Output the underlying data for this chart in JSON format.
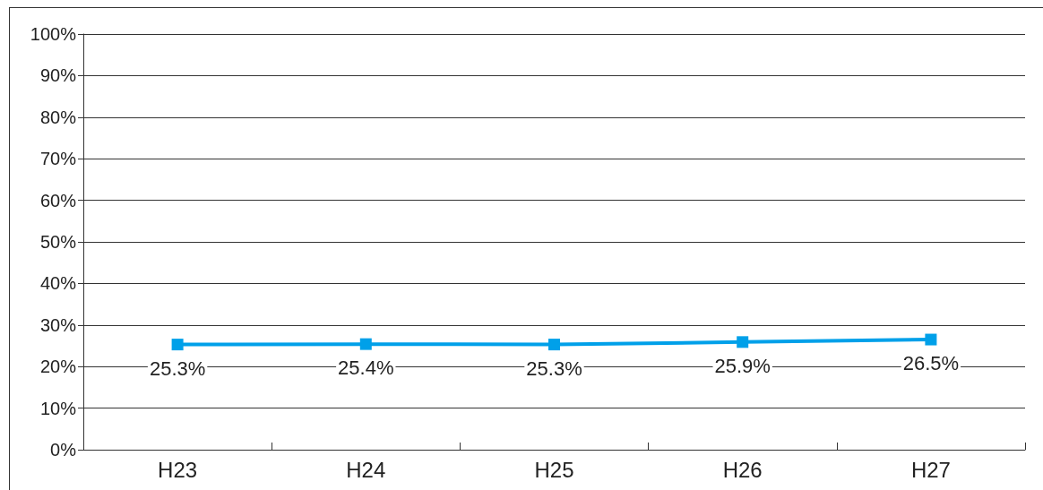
{
  "chart_data": {
    "type": "line",
    "categories": [
      "H23",
      "H24",
      "H25",
      "H26",
      "H27"
    ],
    "series": [
      {
        "color": "#00a0e9",
        "values": [
          25.3,
          25.4,
          25.3,
          25.9,
          26.5
        ],
        "value_labels": [
          "25.3%",
          "25.4%",
          "25.3%",
          "25.9%",
          "26.5%"
        ]
      }
    ],
    "ylim": [
      0,
      100
    ],
    "yticks": [
      {
        "value": 0,
        "label": "0%"
      },
      {
        "value": 10,
        "label": "10%"
      },
      {
        "value": 20,
        "label": "20%"
      },
      {
        "value": 30,
        "label": "30%"
      },
      {
        "value": 40,
        "label": "40%"
      },
      {
        "value": 50,
        "label": "50%"
      },
      {
        "value": 60,
        "label": "60%"
      },
      {
        "value": 70,
        "label": "70%"
      },
      {
        "value": 80,
        "label": "80%"
      },
      {
        "value": 90,
        "label": "90%"
      },
      {
        "value": 100,
        "label": "100%"
      }
    ],
    "grid": "y",
    "marker": "square",
    "line_style": "solid"
  }
}
